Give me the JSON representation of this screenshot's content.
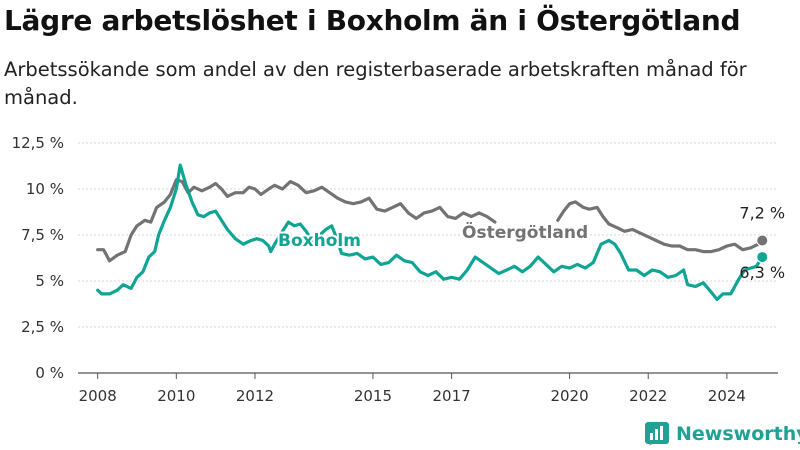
{
  "title": "Lägre arbetslöshet i Boxholm än i Östergötland",
  "subtitle": "Arbetssökande som andel av den registerbaserade arbetskraften månad för månad.",
  "brand": {
    "name": "Newsworthy",
    "icon": "newsworthy-logo-icon",
    "color": "#20a195"
  },
  "chart_data": {
    "type": "line",
    "y_tick_labels": [
      "0 %",
      "2,5 %",
      "5 %",
      "7,5 %",
      "10 %",
      "12,5 %"
    ],
    "y_ticks": [
      0,
      2.5,
      5,
      7.5,
      10,
      12.5
    ],
    "ylim": [
      0,
      12.5
    ],
    "x_tick_labels": [
      "2008",
      "2010",
      "2012",
      "2015",
      "2017",
      "2020",
      "2022",
      "2024"
    ],
    "x_ticks": [
      2008,
      2010,
      2012,
      2015,
      2017,
      2020,
      2022,
      2024
    ],
    "xlim": [
      2007.5,
      2025.3
    ],
    "grid": "horizontal",
    "series": [
      {
        "name": "Östergötland",
        "color": "#737373",
        "end_label": "7,2 %",
        "end_value": 7.2,
        "points": [
          [
            2008.0,
            6.7
          ],
          [
            2008.15,
            6.7
          ],
          [
            2008.3,
            6.1
          ],
          [
            2008.5,
            6.4
          ],
          [
            2008.7,
            6.6
          ],
          [
            2008.85,
            7.5
          ],
          [
            2009.0,
            8.0
          ],
          [
            2009.2,
            8.3
          ],
          [
            2009.35,
            8.2
          ],
          [
            2009.5,
            9.0
          ],
          [
            2009.7,
            9.3
          ],
          [
            2009.85,
            9.7
          ],
          [
            2010.0,
            10.5
          ],
          [
            2010.15,
            10.4
          ],
          [
            2010.3,
            9.8
          ],
          [
            2010.45,
            10.1
          ],
          [
            2010.65,
            9.9
          ],
          [
            2010.85,
            10.1
          ],
          [
            2011.0,
            10.3
          ],
          [
            2011.15,
            10.0
          ],
          [
            2011.3,
            9.6
          ],
          [
            2011.5,
            9.8
          ],
          [
            2011.7,
            9.8
          ],
          [
            2011.85,
            10.1
          ],
          [
            2012.0,
            10.0
          ],
          [
            2012.15,
            9.7
          ],
          [
            2012.35,
            10.0
          ],
          [
            2012.5,
            10.2
          ],
          [
            2012.7,
            10.0
          ],
          [
            2012.9,
            10.4
          ],
          [
            2013.1,
            10.2
          ],
          [
            2013.3,
            9.8
          ],
          [
            2013.5,
            9.9
          ],
          [
            2013.7,
            10.1
          ],
          [
            2013.9,
            9.8
          ],
          [
            2014.1,
            9.5
          ],
          [
            2014.3,
            9.3
          ],
          [
            2014.5,
            9.2
          ],
          [
            2014.7,
            9.3
          ],
          [
            2014.9,
            9.5
          ],
          [
            2015.1,
            8.9
          ],
          [
            2015.3,
            8.8
          ],
          [
            2015.5,
            9.0
          ],
          [
            2015.7,
            9.2
          ],
          [
            2015.9,
            8.7
          ],
          [
            2016.1,
            8.4
          ],
          [
            2016.3,
            8.7
          ],
          [
            2016.5,
            8.8
          ],
          [
            2016.7,
            9.0
          ],
          [
            2016.9,
            8.5
          ],
          [
            2017.1,
            8.4
          ],
          [
            2017.3,
            8.7
          ],
          [
            2017.5,
            8.5
          ],
          [
            2017.7,
            8.7
          ],
          [
            2017.9,
            8.5
          ],
          [
            2018.1,
            8.2
          ],
          [
            2019.7,
            8.3
          ],
          [
            2019.85,
            8.8
          ],
          [
            2020.0,
            9.2
          ],
          [
            2020.15,
            9.3
          ],
          [
            2020.35,
            9.0
          ],
          [
            2020.5,
            8.9
          ],
          [
            2020.7,
            9.0
          ],
          [
            2020.85,
            8.5
          ],
          [
            2021.0,
            8.1
          ],
          [
            2021.2,
            7.9
          ],
          [
            2021.4,
            7.7
          ],
          [
            2021.6,
            7.8
          ],
          [
            2021.8,
            7.6
          ],
          [
            2022.0,
            7.4
          ],
          [
            2022.2,
            7.2
          ],
          [
            2022.4,
            7.0
          ],
          [
            2022.6,
            6.9
          ],
          [
            2022.8,
            6.9
          ],
          [
            2023.0,
            6.7
          ],
          [
            2023.2,
            6.7
          ],
          [
            2023.4,
            6.6
          ],
          [
            2023.6,
            6.6
          ],
          [
            2023.8,
            6.7
          ],
          [
            2024.0,
            6.9
          ],
          [
            2024.2,
            7.0
          ],
          [
            2024.4,
            6.7
          ],
          [
            2024.6,
            6.8
          ],
          [
            2024.8,
            7.0
          ],
          [
            2024.9,
            7.2
          ]
        ]
      },
      {
        "name": "Boxholm",
        "color": "#0fa493",
        "end_label": "6,3 %",
        "end_value": 6.3,
        "points": [
          [
            2008.0,
            4.5
          ],
          [
            2008.1,
            4.3
          ],
          [
            2008.3,
            4.3
          ],
          [
            2008.5,
            4.5
          ],
          [
            2008.65,
            4.8
          ],
          [
            2008.85,
            4.6
          ],
          [
            2009.0,
            5.2
          ],
          [
            2009.15,
            5.5
          ],
          [
            2009.3,
            6.3
          ],
          [
            2009.45,
            6.6
          ],
          [
            2009.55,
            7.5
          ],
          [
            2009.7,
            8.3
          ],
          [
            2009.85,
            9.0
          ],
          [
            2010.0,
            10.0
          ],
          [
            2010.1,
            11.3
          ],
          [
            2010.25,
            10.2
          ],
          [
            2010.4,
            9.3
          ],
          [
            2010.55,
            8.6
          ],
          [
            2010.7,
            8.5
          ],
          [
            2010.85,
            8.7
          ],
          [
            2011.0,
            8.8
          ],
          [
            2011.15,
            8.3
          ],
          [
            2011.3,
            7.8
          ],
          [
            2011.5,
            7.3
          ],
          [
            2011.7,
            7.0
          ],
          [
            2011.9,
            7.2
          ],
          [
            2012.05,
            7.3
          ],
          [
            2012.2,
            7.2
          ],
          [
            2012.35,
            6.9
          ],
          [
            2012.4,
            6.6
          ],
          [
            2012.5,
            7.0
          ],
          [
            2012.7,
            7.7
          ],
          [
            2012.85,
            8.2
          ],
          [
            2013.0,
            8.0
          ],
          [
            2013.15,
            8.1
          ],
          [
            2013.3,
            7.7
          ],
          [
            2013.45,
            7.2
          ],
          [
            2013.6,
            7.4
          ],
          [
            2013.8,
            7.8
          ],
          [
            2013.95,
            8.0
          ],
          [
            2014.1,
            7.2
          ],
          [
            2014.2,
            6.5
          ],
          [
            2014.4,
            6.4
          ],
          [
            2014.6,
            6.5
          ],
          [
            2014.8,
            6.2
          ],
          [
            2015.0,
            6.3
          ],
          [
            2015.2,
            5.9
          ],
          [
            2015.4,
            6.0
          ],
          [
            2015.6,
            6.4
          ],
          [
            2015.8,
            6.1
          ],
          [
            2016.0,
            6.0
          ],
          [
            2016.2,
            5.5
          ],
          [
            2016.4,
            5.3
          ],
          [
            2016.6,
            5.5
          ],
          [
            2016.8,
            5.1
          ],
          [
            2017.0,
            5.2
          ],
          [
            2017.2,
            5.1
          ],
          [
            2017.4,
            5.6
          ],
          [
            2017.6,
            6.3
          ],
          [
            2017.8,
            6.0
          ],
          [
            2018.0,
            5.7
          ],
          [
            2018.2,
            5.4
          ],
          [
            2018.4,
            5.6
          ],
          [
            2018.6,
            5.8
          ],
          [
            2018.8,
            5.5
          ],
          [
            2019.0,
            5.8
          ],
          [
            2019.2,
            6.3
          ],
          [
            2019.4,
            5.9
          ],
          [
            2019.6,
            5.5
          ],
          [
            2019.8,
            5.8
          ],
          [
            2020.0,
            5.7
          ],
          [
            2020.2,
            5.9
          ],
          [
            2020.4,
            5.7
          ],
          [
            2020.6,
            6.0
          ],
          [
            2020.8,
            7.0
          ],
          [
            2021.0,
            7.2
          ],
          [
            2021.15,
            7.0
          ],
          [
            2021.3,
            6.5
          ],
          [
            2021.5,
            5.6
          ],
          [
            2021.7,
            5.6
          ],
          [
            2021.9,
            5.3
          ],
          [
            2022.1,
            5.6
          ],
          [
            2022.3,
            5.5
          ],
          [
            2022.5,
            5.2
          ],
          [
            2022.7,
            5.3
          ],
          [
            2022.9,
            5.6
          ],
          [
            2023.0,
            4.8
          ],
          [
            2023.2,
            4.7
          ],
          [
            2023.4,
            4.9
          ],
          [
            2023.6,
            4.4
          ],
          [
            2023.75,
            4.0
          ],
          [
            2023.9,
            4.3
          ],
          [
            2024.1,
            4.3
          ],
          [
            2024.3,
            5.1
          ],
          [
            2024.45,
            5.6
          ],
          [
            2024.6,
            5.7
          ],
          [
            2024.75,
            5.8
          ],
          [
            2024.9,
            6.3
          ]
        ]
      }
    ]
  }
}
